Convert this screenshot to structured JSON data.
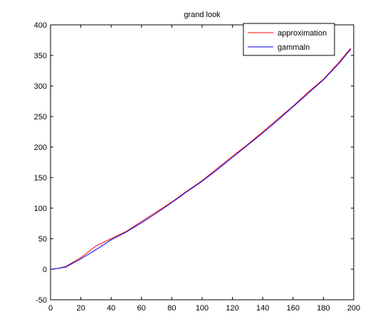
{
  "chart_data": {
    "type": "line",
    "title": "grand look",
    "xlabel": "",
    "ylabel": "",
    "xlim": [
      0,
      200
    ],
    "ylim": [
      -50,
      400
    ],
    "xticks": [
      0,
      20,
      40,
      60,
      80,
      100,
      120,
      140,
      160,
      180,
      200
    ],
    "yticks": [
      -50,
      0,
      50,
      100,
      150,
      200,
      250,
      300,
      350,
      400
    ],
    "grid": false,
    "legend_position": "top-right",
    "x": [
      1,
      5,
      10,
      20,
      30,
      40,
      50,
      60,
      70,
      80,
      90,
      100,
      110,
      120,
      130,
      140,
      150,
      160,
      170,
      180,
      190,
      198
    ],
    "series": [
      {
        "name": "approximation",
        "color": "#ff0000",
        "values": [
          0.5,
          1.5,
          4.5,
          19,
          38,
          50,
          62,
          78,
          94,
          110,
          128,
          145,
          165,
          185,
          204,
          225,
          246,
          267,
          290,
          311,
          338,
          362
        ]
      },
      {
        "name": "gammaln",
        "color": "#0000ff",
        "values": [
          0,
          1.5,
          3.5,
          17,
          32,
          48,
          61,
          76,
          92,
          109,
          127,
          144,
          163,
          183,
          203,
          223,
          244,
          266,
          288,
          310,
          336,
          360
        ]
      }
    ]
  }
}
